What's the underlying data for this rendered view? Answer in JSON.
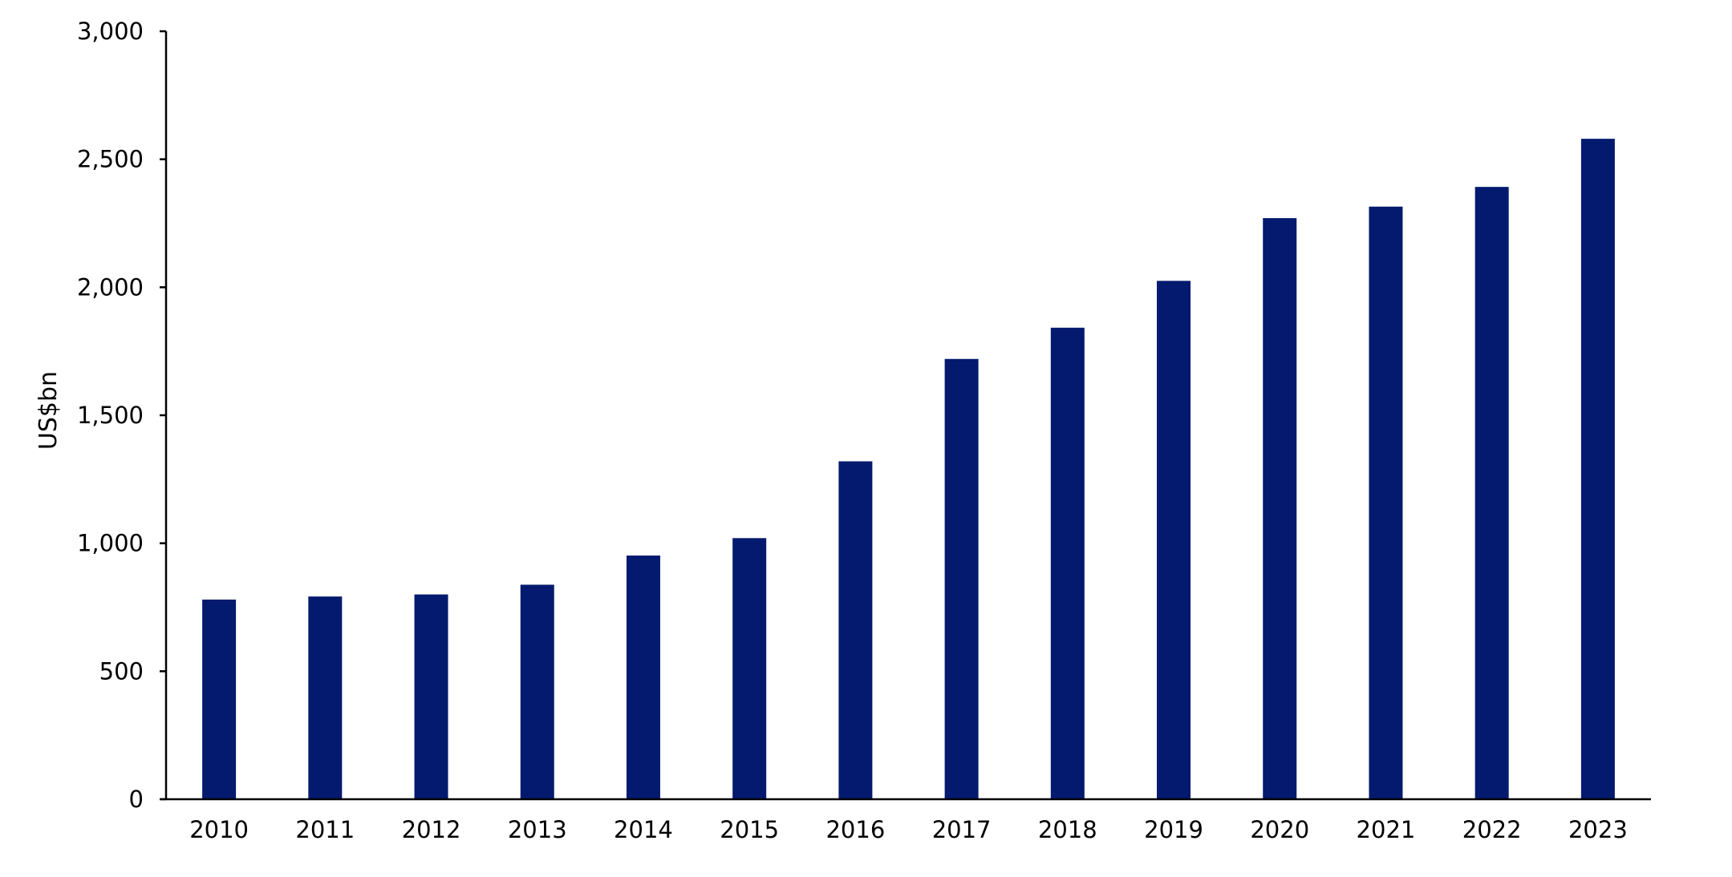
{
  "chart_data": {
    "type": "bar",
    "title": "",
    "xlabel": "",
    "ylabel": "US$bn",
    "categories": [
      "2010",
      "2011",
      "2012",
      "2013",
      "2014",
      "2015",
      "2016",
      "2017",
      "2018",
      "2019",
      "2020",
      "2021",
      "2022",
      "2023"
    ],
    "series": [
      {
        "color": "#041a6e",
        "values": [
          780,
          792,
          800,
          838,
          952,
          1020,
          1320,
          1720,
          1842,
          2025,
          2270,
          2315,
          2392,
          2580
        ]
      }
    ],
    "ylim": [
      0,
      3000
    ],
    "yticks": [
      0,
      500,
      1000,
      1500,
      2000,
      2500,
      3000
    ],
    "ytick_labels": [
      "0",
      "500",
      "1,000",
      "1,500",
      "2,000",
      "2,500",
      "3,000"
    ],
    "grid": false,
    "legend": "none"
  }
}
